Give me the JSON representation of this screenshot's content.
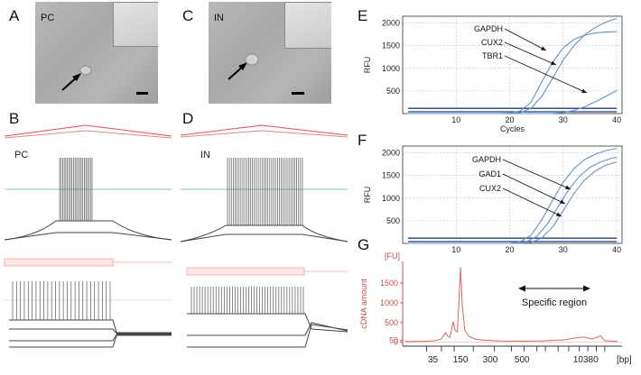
{
  "panels": {
    "A": {
      "letter": "A",
      "label": "PC"
    },
    "B": {
      "letter": "B",
      "label": "PC"
    },
    "C": {
      "letter": "C",
      "label": "IN"
    },
    "D": {
      "letter": "D",
      "label": "IN"
    },
    "E": {
      "letter": "E"
    },
    "F": {
      "letter": "F"
    },
    "G": {
      "letter": "G"
    }
  },
  "colors": {
    "curve": "#6a8fc4",
    "baseline": "#1c3e78",
    "bioanalyzer": "#d9665f",
    "axis_red": "#c0504d",
    "trace": "#444444",
    "stim_red": "#e05050",
    "threshold_teal": "#5fb4b0"
  },
  "chart_data": [
    {
      "type": "line",
      "panel": "E",
      "xlabel": "Cycles",
      "ylabel": "RFU",
      "xlim": [
        0,
        41
      ],
      "ylim": [
        0,
        2150
      ],
      "x_ticks": [
        10,
        20,
        30,
        40
      ],
      "y_ticks": [
        500,
        1000,
        1500,
        2000
      ],
      "grid": "dotted",
      "series": [
        {
          "name": "GAPDH",
          "points": [
            [
              1,
              0
            ],
            [
              18,
              0
            ],
            [
              20,
              10
            ],
            [
              22,
              60
            ],
            [
              24,
              250
            ],
            [
              26,
              700
            ],
            [
              28,
              1130
            ],
            [
              30,
              1450
            ],
            [
              32,
              1640
            ],
            [
              34,
              1730
            ],
            [
              36,
              1780
            ],
            [
              38,
              1800
            ],
            [
              40,
              1810
            ]
          ]
        },
        {
          "name": "CUX2",
          "points": [
            [
              1,
              0
            ],
            [
              20,
              0
            ],
            [
              22,
              20
            ],
            [
              24,
              120
            ],
            [
              26,
              380
            ],
            [
              28,
              780
            ],
            [
              30,
              1180
            ],
            [
              32,
              1500
            ],
            [
              34,
              1740
            ],
            [
              36,
              1900
            ],
            [
              38,
              2020
            ],
            [
              40,
              2100
            ]
          ]
        },
        {
          "name": "TBR1",
          "points": [
            [
              1,
              0
            ],
            [
              28,
              0
            ],
            [
              30,
              20
            ],
            [
              32,
              70
            ],
            [
              34,
              150
            ],
            [
              36,
              260
            ],
            [
              38,
              380
            ],
            [
              40,
              510
            ]
          ]
        }
      ],
      "threshold": 115
    },
    {
      "type": "line",
      "panel": "F",
      "xlabel": "",
      "ylabel": "RFU",
      "xlim": [
        0,
        41
      ],
      "ylim": [
        0,
        2150
      ],
      "x_ticks": [
        10,
        20,
        30,
        40
      ],
      "y_ticks": [
        500,
        1000,
        1500,
        2000
      ],
      "grid": "dotted",
      "series": [
        {
          "name": "GAPDH",
          "points": [
            [
              1,
              0
            ],
            [
              20,
              0
            ],
            [
              22,
              40
            ],
            [
              24,
              180
            ],
            [
              26,
              520
            ],
            [
              28,
              950
            ],
            [
              30,
              1350
            ],
            [
              32,
              1650
            ],
            [
              34,
              1850
            ],
            [
              36,
              1970
            ],
            [
              38,
              2050
            ],
            [
              40,
              2100
            ]
          ]
        },
        {
          "name": "GAD1",
          "points": [
            [
              1,
              0
            ],
            [
              21,
              0
            ],
            [
              23,
              30
            ],
            [
              25,
              150
            ],
            [
              27,
              420
            ],
            [
              29,
              800
            ],
            [
              31,
              1180
            ],
            [
              33,
              1480
            ],
            [
              35,
              1680
            ],
            [
              37,
              1800
            ],
            [
              39,
              1880
            ],
            [
              40,
              1900
            ]
          ]
        },
        {
          "name": "CUX2",
          "points": [
            [
              1,
              0
            ],
            [
              22,
              0
            ],
            [
              24,
              20
            ],
            [
              26,
              120
            ],
            [
              28,
              360
            ],
            [
              30,
              720
            ],
            [
              32,
              1100
            ],
            [
              34,
              1400
            ],
            [
              36,
              1600
            ],
            [
              38,
              1730
            ],
            [
              40,
              1800
            ]
          ]
        }
      ],
      "threshold": 115
    },
    {
      "type": "line",
      "panel": "G",
      "xlabel": "[bp]",
      "ylabel": "cDNA amount",
      "yunit": "[FU]",
      "ylim": [
        -100,
        2050
      ],
      "y_ticks": [
        0,
        50,
        500,
        1000,
        1500
      ],
      "x_tick_labels": [
        "35",
        "150",
        "300",
        "500",
        "10380"
      ],
      "annotation": "Specific region",
      "series": [
        {
          "name": "electropherogram",
          "points": [
            [
              0.0,
              20
            ],
            [
              0.05,
              20
            ],
            [
              0.1,
              25
            ],
            [
              0.14,
              40
            ],
            [
              0.17,
              80
            ],
            [
              0.19,
              240
            ],
            [
              0.2,
              150
            ],
            [
              0.21,
              120
            ],
            [
              0.225,
              520
            ],
            [
              0.235,
              300
            ],
            [
              0.245,
              260
            ],
            [
              0.26,
              1900
            ],
            [
              0.268,
              950
            ],
            [
              0.28,
              300
            ],
            [
              0.3,
              150
            ],
            [
              0.33,
              80
            ],
            [
              0.37,
              50
            ],
            [
              0.45,
              30
            ],
            [
              0.55,
              25
            ],
            [
              0.65,
              35
            ],
            [
              0.75,
              60
            ],
            [
              0.8,
              110
            ],
            [
              0.84,
              130
            ],
            [
              0.88,
              80
            ],
            [
              0.92,
              160
            ],
            [
              0.94,
              40
            ],
            [
              1.0,
              20
            ]
          ]
        }
      ]
    }
  ]
}
